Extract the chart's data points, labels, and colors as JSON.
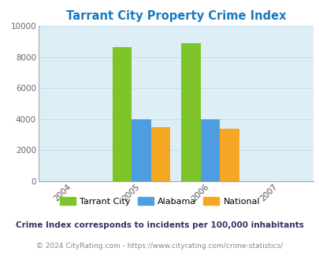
{
  "title": "Tarrant City Property Crime Index",
  "title_color": "#1a7abf",
  "years": [
    2004,
    2005,
    2006,
    2007
  ],
  "bar_groups": {
    "2005": {
      "Tarrant City": 8650,
      "Alabama": 4000,
      "National": 3480
    },
    "2006": {
      "Tarrant City": 8900,
      "Alabama": 4000,
      "National": 3400
    }
  },
  "colors": {
    "Tarrant City": "#7cc427",
    "Alabama": "#4d9de0",
    "National": "#f5a623"
  },
  "ylim": [
    0,
    10000
  ],
  "yticks": [
    0,
    2000,
    4000,
    6000,
    8000,
    10000
  ],
  "xlim": [
    2003.5,
    2007.5
  ],
  "plot_bg_color": "#ddeef6",
  "fig_bg_color": "#ffffff",
  "grid_color": "#c8dce8",
  "footnote1": "Crime Index corresponds to incidents per 100,000 inhabitants",
  "footnote2": "© 2024 CityRating.com - https://www.cityrating.com/crime-statistics/",
  "footnote1_color": "#333366",
  "footnote2_color": "#888888",
  "bar_width": 0.28,
  "legend_labels": [
    "Tarrant City",
    "Alabama",
    "National"
  ]
}
